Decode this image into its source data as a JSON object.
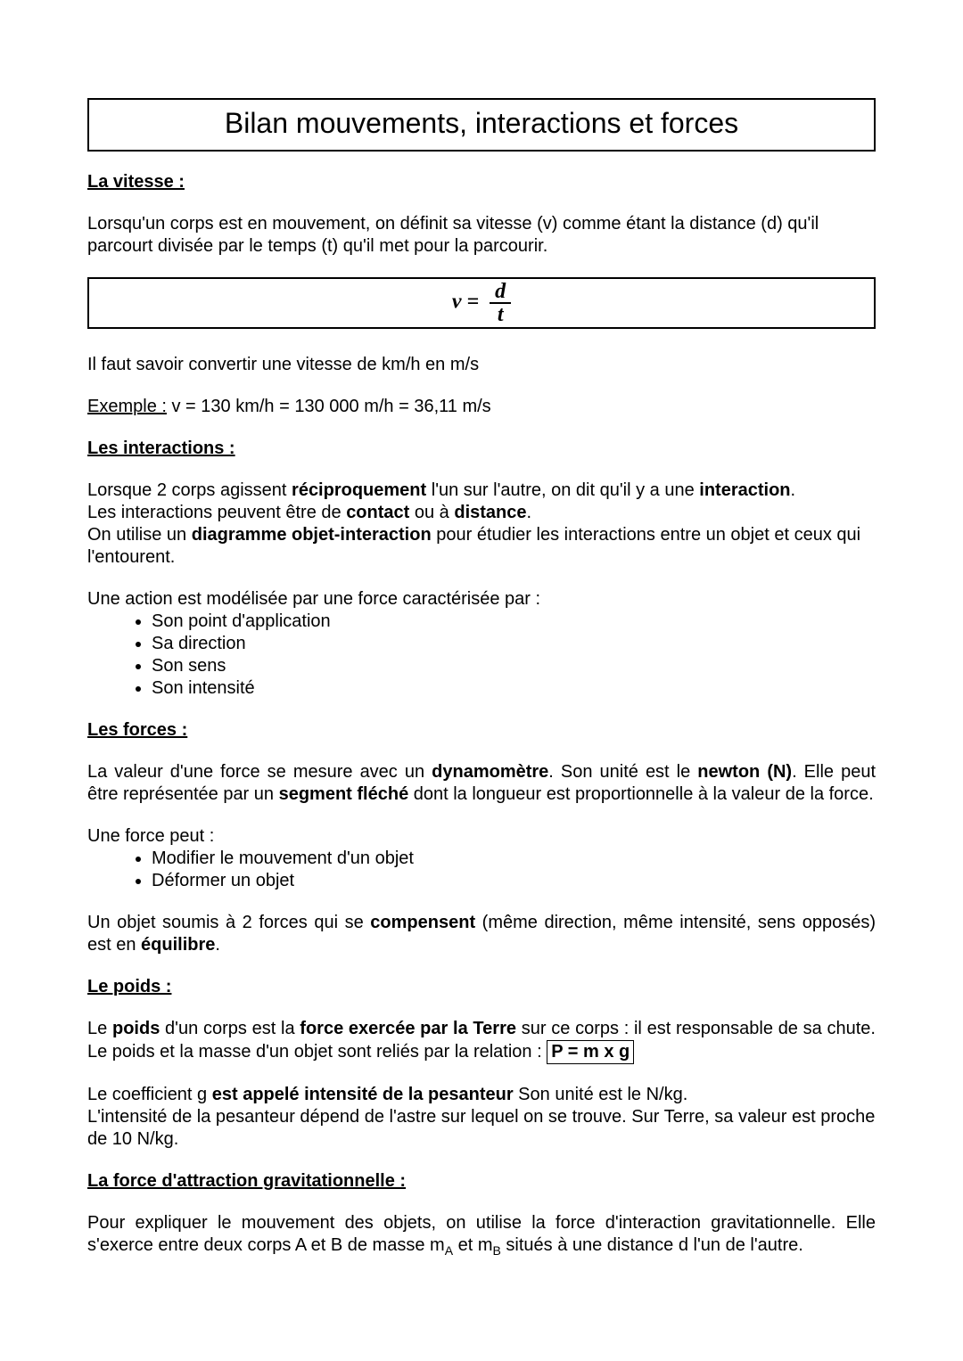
{
  "title": "Bilan mouvements, interactions et forces",
  "s1": {
    "heading": "La vitesse :",
    "p1": "Lorsqu'un corps est en mouvement, on définit sa vitesse (v) comme étant la distance (d) qu'il parcourt divisée par le temps (t) qu'il met pour la parcourir.",
    "formula_lhs": "v =",
    "formula_num": "d",
    "formula_den": "t",
    "p2": "Il faut savoir convertir une vitesse de km/h en m/s",
    "ex_label": "Exemple :",
    "ex_val": " v = 130 km/h = 130 000 m/h = 36,11 m/s"
  },
  "s2": {
    "heading": "Les interactions :",
    "l1a": "Lorsque 2 corps agissent ",
    "l1b": "réciproquement",
    "l1c": " l'un sur l'autre, on dit qu'il y a une ",
    "l1d": "interaction",
    "l1e": ".",
    "l2a": "Les interactions peuvent être de ",
    "l2b": "contact",
    "l2c": " ou à ",
    "l2d": "distance",
    "l2e": ".",
    "l3a": "On utilise un ",
    "l3b": "diagramme objet-interaction",
    "l3c": " pour étudier les interactions entre un objet et ceux qui l'entourent.",
    "p2": "Une action est modélisée par une force caractérisée par :",
    "li1": "Son point d'application",
    "li2": "Sa direction",
    "li3": "Son sens",
    "li4": "Son intensité"
  },
  "s3": {
    "heading": "Les forces :",
    "p1a": "La valeur d'une force se mesure avec un ",
    "p1b": "dynamomètre",
    "p1c": ". Son unité est le ",
    "p1d": "newton (N)",
    "p1e": ". Elle peut être représentée par un ",
    "p1f": "segment fléché",
    "p1g": " dont la longueur est proportionnelle à la valeur de la force.",
    "p2": "Une force peut :",
    "li1": "Modifier le mouvement d'un objet",
    "li2": "Déformer un objet",
    "p3a": "Un objet soumis à 2 forces qui se ",
    "p3b": "compensent",
    "p3c": " (même direction, même intensité, sens opposés) est en ",
    "p3d": "équilibre",
    "p3e": "."
  },
  "s4": {
    "heading": "Le poids :",
    "p1a": "Le ",
    "p1b": "poids",
    "p1c": " d'un corps est la ",
    "p1d": "force exercée par la Terre",
    "p1e": " sur ce corps : il est responsable de sa chute. Le poids et la masse d'un objet sont reliés par la relation : ",
    "p1_box": "P = m x g",
    "p2a": "Le coefficient g ",
    "p2b": "est appelé intensité de la pesanteur",
    "p2c": " Son unité est le N/kg.",
    "p2d": "L'intensité de la pesanteur dépend de l'astre sur lequel on se trouve. Sur Terre, sa valeur est proche de 10 N/kg."
  },
  "s5": {
    "heading": "La force d'attraction gravitationnelle :",
    "p1a": "Pour expliquer le mouvement des objets, on utilise la force d'interaction gravitationnelle. Elle s'exerce entre deux corps A et B de masse m",
    "p1_subA": "A",
    "p1b": " et m",
    "p1_subB": "B",
    "p1c": " situés à une distance d l'un de l'autre."
  }
}
